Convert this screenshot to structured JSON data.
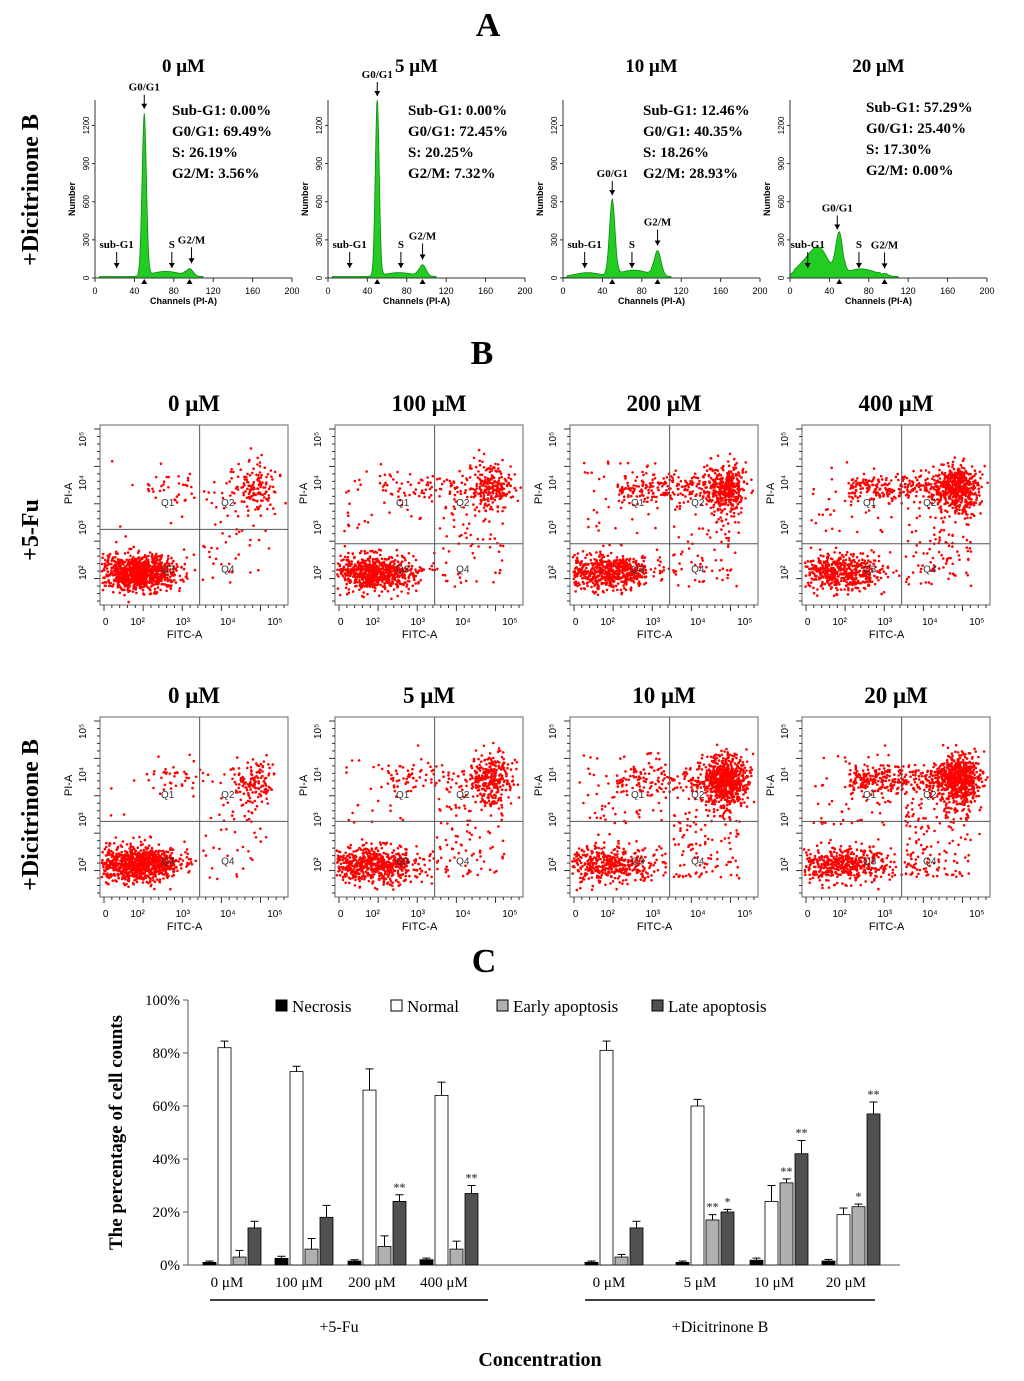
{
  "figure": {
    "panel_a_label": "A",
    "panel_b_label": "B",
    "panel_c_label": "C"
  },
  "colors": {
    "histogram_fill": "#22cc22",
    "dots": "#ff0000",
    "necrosis": "#000000",
    "normal": "#ffffff",
    "early": "#b0b0b0",
    "late": "#505050"
  },
  "panel_a": {
    "row_label": "+Dicitrinone B",
    "xlabel": "Channels (PI-A)",
    "ylabel": "Number",
    "x_ticks": [
      "0",
      "40",
      "80",
      "120",
      "160",
      "200"
    ],
    "y_ticks": [
      "0",
      "300",
      "600",
      "900",
      "1200"
    ],
    "plots": [
      {
        "title": "0 μM",
        "stats": [
          "Sub-G1: 0.00%",
          "G0/G1: 69.49%",
          "S: 26.19%",
          "G2/M: 3.56%"
        ],
        "markers": [
          {
            "label": "sub-G1",
            "x": 22
          },
          {
            "label": "G0/G1",
            "x": 50
          },
          {
            "label": "S",
            "x": 78
          },
          {
            "label": "G2/M",
            "x": 98
          }
        ]
      },
      {
        "title": "5 μM",
        "stats": [
          "Sub-G1: 0.00%",
          "G0/G1: 72.45%",
          "S: 20.25%",
          "G2/M: 7.32%"
        ],
        "markers": [
          {
            "label": "sub-G1",
            "x": 22
          },
          {
            "label": "G0/G1",
            "x": 50
          },
          {
            "label": "S",
            "x": 74
          },
          {
            "label": "G2/M",
            "x": 96
          }
        ]
      },
      {
        "title": "10 μM",
        "stats": [
          "Sub-G1: 12.46%",
          "G0/G1: 40.35%",
          "S: 18.26%",
          "G2/M: 28.93%"
        ],
        "markers": [
          {
            "label": "sub-G1",
            "x": 22
          },
          {
            "label": "G0/G1",
            "x": 50
          },
          {
            "label": "S",
            "x": 70
          },
          {
            "label": "G2/M",
            "x": 96
          }
        ]
      },
      {
        "title": "20 μM",
        "stats": [
          "Sub-G1: 57.29%",
          "G0/G1: 25.40%",
          "S: 17.30%",
          "G2/M: 0.00%"
        ],
        "markers": [
          {
            "label": "sub-G1",
            "x": 18
          },
          {
            "label": "G0/G1",
            "x": 48
          },
          {
            "label": "S",
            "x": 70
          },
          {
            "label": "G2/M",
            "x": 96
          }
        ]
      }
    ]
  },
  "panel_b": {
    "xlabel": "FITC-A",
    "ylabel": "PI-A",
    "quadrants": [
      "Q1",
      "Q2",
      "Q3",
      "Q4"
    ],
    "rows": [
      {
        "label": "+5-Fu",
        "concs": [
          "0 μM",
          "100 μM",
          "200 μM",
          "400 μM"
        ]
      },
      {
        "label": "+Dicitrinone B",
        "concs": [
          "0 μM",
          "5 μM",
          "10 μM",
          "20 μM"
        ]
      }
    ]
  },
  "chart_data": {
    "type": "bar",
    "ylabel": "The percentage of cell counts",
    "xlabel": "Concentration",
    "ylim": [
      0,
      100
    ],
    "y_ticks": [
      "0%",
      "20%",
      "40%",
      "60%",
      "80%",
      "100%"
    ],
    "groups": [
      {
        "name": "+5-Fu",
        "categories": [
          "0 μM",
          "100 μM",
          "200 μM",
          "400 μM"
        ]
      },
      {
        "name": "+Dicitrinone B",
        "categories": [
          "0 μM",
          "5 μM",
          "10 μM",
          "20 μM"
        ]
      }
    ],
    "series": [
      {
        "name": "Necrosis",
        "values": [
          1,
          2.5,
          1.5,
          2,
          1,
          1,
          1.8,
          1.5
        ],
        "errors": [
          0.5,
          0.8,
          0.5,
          0.6,
          0.5,
          0.5,
          0.8,
          0.6
        ],
        "sig": [
          "",
          "",
          "",
          "",
          "",
          "",
          "",
          ""
        ]
      },
      {
        "name": "Normal",
        "values": [
          82,
          73,
          66,
          64,
          81,
          60,
          24,
          19
        ],
        "errors": [
          2.5,
          2,
          8,
          5,
          3.5,
          2.5,
          6,
          2.5
        ],
        "sig": [
          "",
          "",
          "",
          "",
          "",
          "",
          "",
          ""
        ]
      },
      {
        "name": "Early apoptosis",
        "values": [
          3,
          6,
          7,
          6,
          3,
          17,
          31,
          22
        ],
        "errors": [
          2.5,
          4,
          4,
          3,
          1,
          2,
          1.5,
          1
        ],
        "sig": [
          "",
          "",
          "",
          "",
          "",
          "**",
          "**",
          "*"
        ]
      },
      {
        "name": "Late apoptosis",
        "values": [
          14,
          18,
          24,
          27,
          14,
          20,
          42,
          57
        ],
        "errors": [
          2.5,
          4.5,
          2.5,
          3,
          2.5,
          1,
          5,
          4.5
        ],
        "sig": [
          "",
          "",
          "**",
          "**",
          "",
          "*",
          "**",
          "**"
        ]
      }
    ]
  }
}
